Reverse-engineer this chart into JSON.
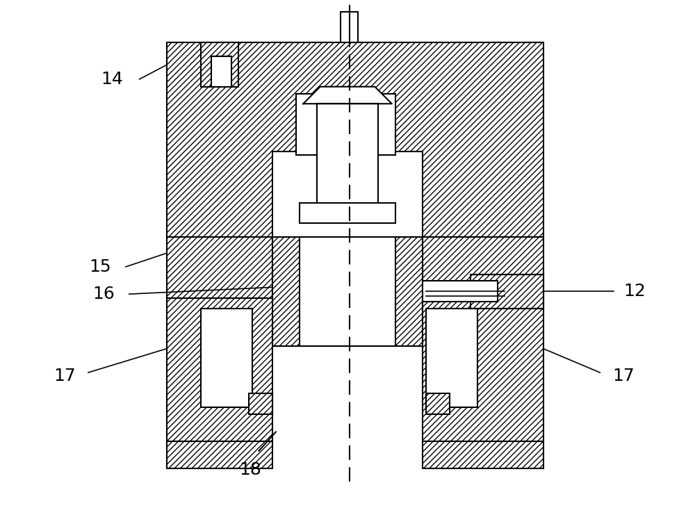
{
  "background_color": "#ffffff",
  "line_color": "#000000",
  "fig_width": 10.0,
  "fig_height": 7.54,
  "label_fontsize": 18,
  "hatch": "////",
  "lw": 1.5
}
